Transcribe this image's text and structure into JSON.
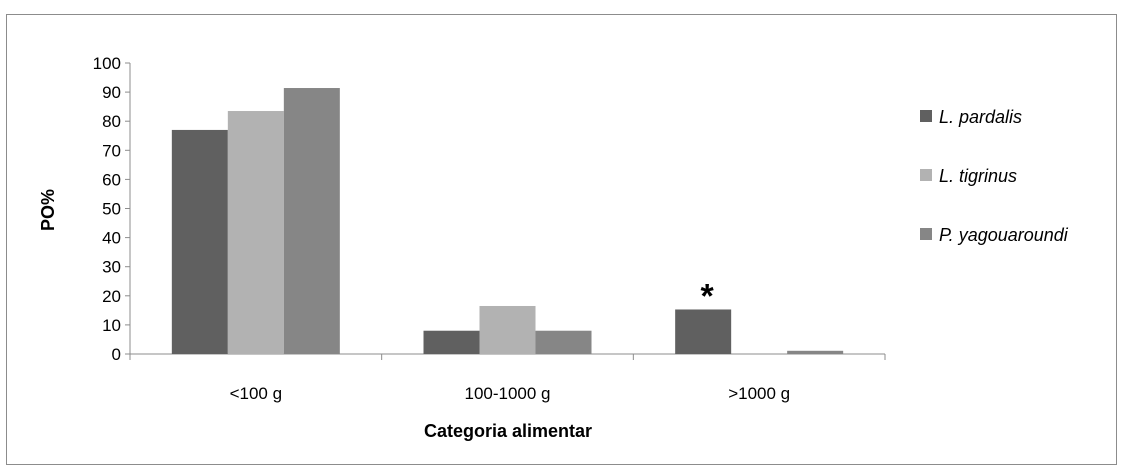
{
  "chart_data": {
    "type": "bar",
    "title": "",
    "xlabel": "Categoria alimentar",
    "ylabel": "PO%",
    "ylim": [
      0,
      100
    ],
    "yticks": [
      0,
      10,
      20,
      30,
      40,
      50,
      60,
      70,
      80,
      90,
      100
    ],
    "grid": false,
    "legend_position": "right",
    "categories": [
      "<100 g",
      "100-1000 g",
      ">1000 g"
    ],
    "series": [
      {
        "name": "L. pardalis",
        "color": "#606060",
        "values": [
          77,
          8,
          15.3
        ]
      },
      {
        "name": "L. tigrinus",
        "color": "#b2b2b2",
        "values": [
          83.5,
          16.5,
          0
        ]
      },
      {
        "name": "P. yagouaroundi",
        "color": "#868686",
        "values": [
          91.4,
          8,
          1.1
        ]
      }
    ],
    "annotations": [
      {
        "text": "*",
        "category": ">1000 g"
      }
    ]
  }
}
